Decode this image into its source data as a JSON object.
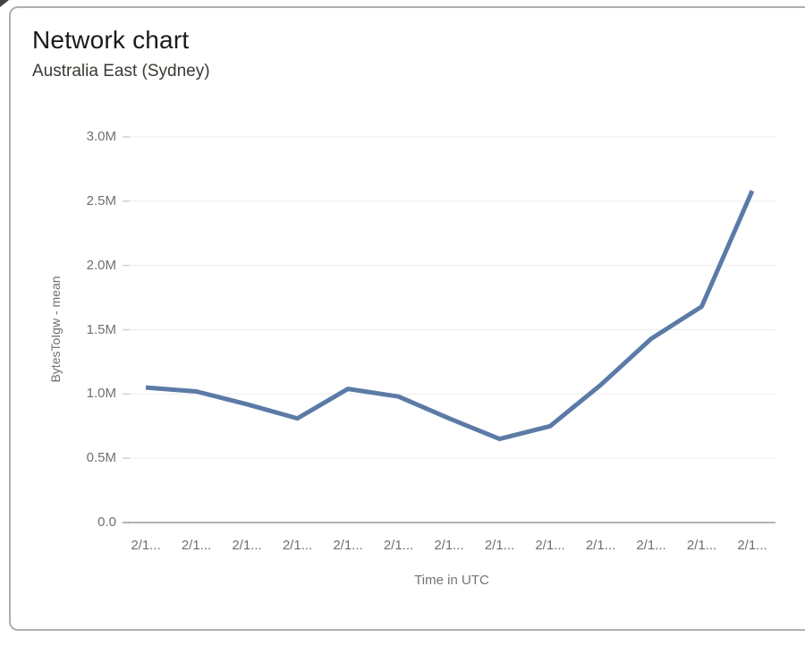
{
  "card": {
    "title": "Network chart",
    "subtitle": "Australia East (Sydney)"
  },
  "chart_data": {
    "type": "line",
    "title": "Network chart",
    "subtitle": "Australia East (Sydney)",
    "xlabel": "Time in UTC",
    "ylabel": "BytesToIgw - mean",
    "x_tick_labels": [
      "2/1...",
      "2/1...",
      "2/1...",
      "2/1...",
      "2/1...",
      "2/1...",
      "2/1...",
      "2/1...",
      "2/1...",
      "2/1...",
      "2/1...",
      "2/1...",
      "2/1..."
    ],
    "y_ticks_millions": [
      0,
      0.5,
      1.0,
      1.5,
      2.0,
      2.5,
      3.0
    ],
    "y_tick_labels": [
      "0.0",
      "0.5M",
      "1.0M",
      "1.5M",
      "2.0M",
      "2.5M",
      "3.0M"
    ],
    "ylim_millions": [
      0,
      3.0
    ],
    "grid": "horizontal",
    "legend": "none",
    "series": [
      {
        "name": "BytesToIgw - mean",
        "values_millions": [
          1.05,
          1.02,
          0.92,
          0.81,
          1.04,
          0.98,
          0.81,
          0.65,
          0.75,
          1.07,
          1.43,
          1.68,
          2.58
        ]
      }
    ],
    "colors": {
      "line": "#5b7ba6",
      "gridline": "#ededed",
      "axis_line": "#9a9a9a",
      "tick_mark": "#cfcfcf",
      "tick_text": "#6f6f6f"
    }
  }
}
